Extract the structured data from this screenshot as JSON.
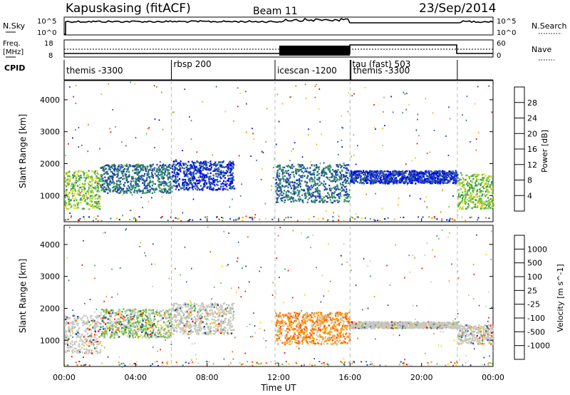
{
  "header": {
    "title": "Kapuskasing (fitACF)",
    "beam": "Beam 11",
    "date": "23/Sep/2014"
  },
  "top_panels": {
    "nsky_label": "N.Sky",
    "nsky_tick_hi": "10^5",
    "nsky_tick_lo": "10^0",
    "nsearch_label": "N.Search",
    "nsearch_tick_hi": "10^5",
    "nsearch_tick_lo": "10^0",
    "freq_label": "Freq.",
    "freq_unit": "[MHz]",
    "freq_tick_hi": "18",
    "freq_tick_lo": "8",
    "nave_label": "Nave",
    "nave_tick_hi": "60",
    "nave_tick_lo": "0",
    "cpid_label": "CPID"
  },
  "cpid_segments": [
    {
      "start": 0.0,
      "end": 6.0,
      "label": "themis -3300"
    },
    {
      "start": 6.0,
      "end": 11.8,
      "label": "rbsp 200"
    },
    {
      "start": 11.8,
      "end": 16.0,
      "label": "icescan -1200"
    },
    {
      "start": 16.0,
      "end": 16.05,
      "label": "tau (fast) 503"
    },
    {
      "start": 16.05,
      "end": 22.0,
      "label": "themis -3300"
    }
  ],
  "chart_data": [
    {
      "type": "heatmap",
      "name": "Power",
      "ylabel": "Slant Range [km]",
      "xlim": [
        0,
        24
      ],
      "ylim": [
        180,
        4600
      ],
      "yticks": [
        1000,
        2000,
        3000,
        4000
      ],
      "colorbar": {
        "label": "Power [dB]",
        "range": [
          0,
          32
        ],
        "ticks": [
          4,
          8,
          12,
          16,
          20,
          24,
          28
        ],
        "colors": [
          "#0000ff",
          "#1f3fa8",
          "#2e6e8e",
          "#3a9a5b",
          "#6bc23a",
          "#d8d820",
          "#ffaa00",
          "#ff6a00",
          "#ff0000"
        ]
      },
      "echo_bands": [
        {
          "t0": 0.0,
          "t1": 2.0,
          "r0": 600,
          "r1": 1800,
          "level": 14
        },
        {
          "t0": 2.0,
          "t1": 6.0,
          "r0": 1100,
          "r1": 2000,
          "level": 9
        },
        {
          "t0": 6.0,
          "t1": 9.5,
          "r0": 1200,
          "r1": 2100,
          "level": 5
        },
        {
          "t0": 11.8,
          "t1": 16.0,
          "r0": 800,
          "r1": 2000,
          "level": 8
        },
        {
          "t0": 16.0,
          "t1": 22.0,
          "r0": 1400,
          "r1": 1800,
          "level": 4
        },
        {
          "t0": 22.0,
          "t1": 24.0,
          "r0": 600,
          "r1": 1700,
          "level": 15
        }
      ]
    },
    {
      "type": "heatmap",
      "name": "Velocity",
      "ylabel": "Slant Range [km]",
      "xlabel": "Time UT",
      "xlim": [
        0,
        24
      ],
      "ylim": [
        180,
        4600
      ],
      "yticks": [
        1000,
        2000,
        3000,
        4000
      ],
      "xticks": [
        "00:00",
        "04:00",
        "08:00",
        "12:00",
        "16:00",
        "20:00",
        "00:00"
      ],
      "colorbar": {
        "label": "Velocity [m s^-1]",
        "ticks": [
          "1000",
          "500",
          "100",
          "25",
          "-25",
          "-100",
          "-500",
          "-1000"
        ],
        "colors": [
          "#1c3ea8",
          "#2f6f96",
          "#3c9a5f",
          "#6cc23a",
          "#c8c8c0",
          "#ffcc00",
          "#ff9900",
          "#ff5500",
          "#ff0000"
        ]
      },
      "echo_bands": [
        {
          "t0": 0.0,
          "t1": 2.0,
          "r0": 600,
          "r1": 1800,
          "level": "gray"
        },
        {
          "t0": 2.0,
          "t1": 6.0,
          "r0": 1100,
          "r1": 2000,
          "level": "mixed"
        },
        {
          "t0": 6.0,
          "t1": 9.5,
          "r0": 1200,
          "r1": 2200,
          "level": "gray"
        },
        {
          "t0": 11.8,
          "t1": 16.0,
          "r0": 900,
          "r1": 1900,
          "level": "orange"
        },
        {
          "t0": 16.0,
          "t1": 22.0,
          "r0": 1400,
          "r1": 1600,
          "level": "gray"
        },
        {
          "t0": 22.0,
          "t1": 24.0,
          "r0": 900,
          "r1": 1500,
          "level": "gray"
        }
      ]
    }
  ]
}
